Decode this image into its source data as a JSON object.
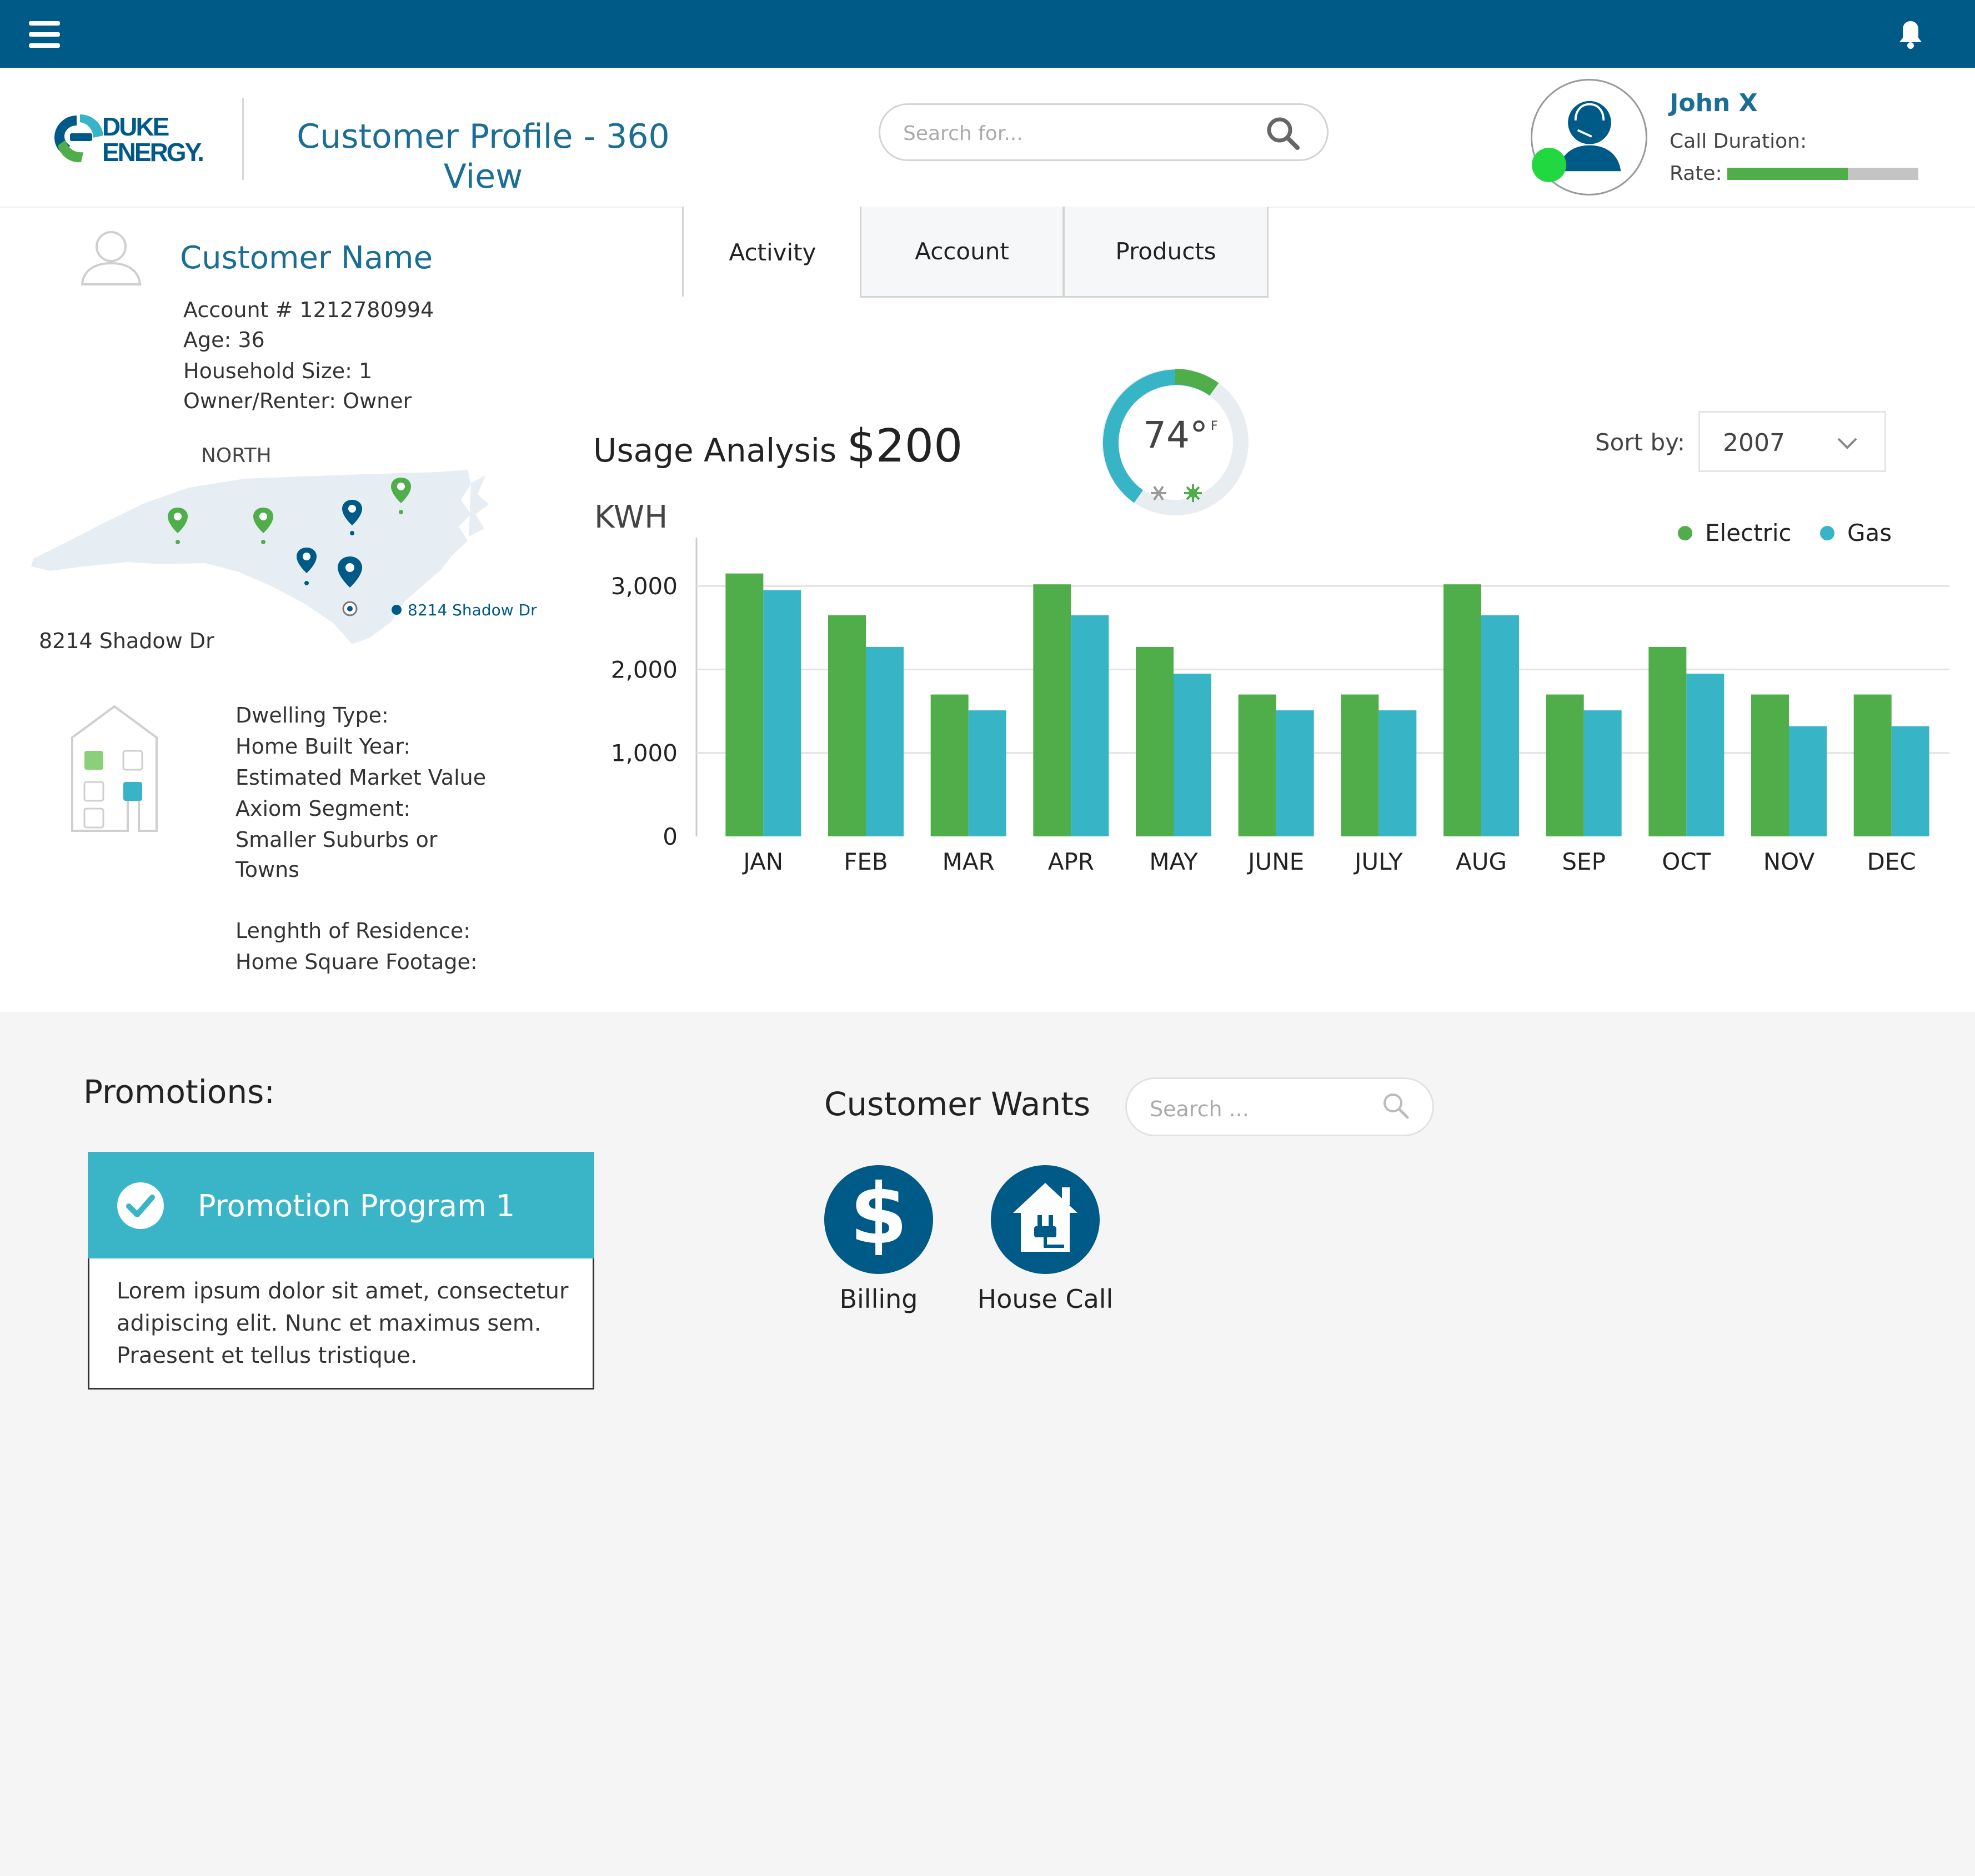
{
  "topbar": {
    "menu_icon": "hamburger-menu-icon",
    "bell_icon": "notification-bell-icon",
    "color": "#005a87"
  },
  "header": {
    "logo_line1": "DUKE",
    "logo_line2": "ENERGY.",
    "title": "Customer Profile - 360 View",
    "search_placeholder": "Search for...",
    "agent": {
      "name": "John X",
      "call_duration_label": "Call Duration:",
      "rate_label": "Rate:",
      "rate_fraction": 0.63,
      "status_color": "#22d840"
    }
  },
  "customer": {
    "name": "Customer Name",
    "account": "Account # 1212780994",
    "age": "Age: 36",
    "household": "Household Size: 1",
    "owner": "Owner/Renter: Owner"
  },
  "tabs": [
    {
      "label": "Activity",
      "active": true
    },
    {
      "label": "Account",
      "active": false
    },
    {
      "label": "Products",
      "active": false
    }
  ],
  "map": {
    "region_label": "NORTH",
    "pin_address": "8214 Shadow Dr",
    "address": "8214 Shadow Dr"
  },
  "dwelling": {
    "type": "Dwelling Type:",
    "built": "Home Built Year:",
    "value": "Estimated Market Value",
    "segment": "Axiom Segment:",
    "segment_value_1": "Smaller Suburbs or",
    "segment_value_2": "Towns",
    "residence": "Lenghth of Residence:",
    "sqft": "Home Square Footage:"
  },
  "usage": {
    "title": "Usage Analysis",
    "amount": "$200",
    "temperature": "74°",
    "temp_unit": "F",
    "sort_label": "Sort by:",
    "sort_value": "2007"
  },
  "chart_data": {
    "type": "bar",
    "ylabel": "KWH",
    "categories": [
      "JAN",
      "FEB",
      "MAR",
      "APR",
      "MAY",
      "JUNE",
      "JULY",
      "AUG",
      "SEP",
      "OCT",
      "NOV",
      "DEC"
    ],
    "series": [
      {
        "name": "Electric",
        "color": "#4fae49",
        "values": [
          3150,
          2650,
          1700,
          3020,
          2270,
          1700,
          1700,
          3020,
          1700,
          2270,
          1700,
          1700
        ]
      },
      {
        "name": "Gas",
        "color": "#38b4c7",
        "values": [
          2950,
          2270,
          1510,
          2650,
          1950,
          1510,
          1510,
          2650,
          1510,
          1950,
          1320,
          1320
        ]
      }
    ],
    "yticks": [
      "0",
      "1,000",
      "2,000",
      "3,000"
    ],
    "ytick_values": [
      0,
      1000,
      2000,
      3000
    ],
    "ylim": [
      0,
      3700
    ],
    "legend": "top-right",
    "grid": true
  },
  "promotions": {
    "title": "Promotions:",
    "program_title": "Promotion Program 1",
    "program_body": "Lorem ipsum dolor sit amet, consectetur adipiscing elit. Nunc et maximus sem. Praesent et tellus tristique.",
    "header_color": "#3ab5c7"
  },
  "wants": {
    "title": "Customer Wants",
    "search_placeholder": "Search ...",
    "items": [
      {
        "label": "Billing",
        "icon": "dollar-icon"
      },
      {
        "label": "House Call",
        "icon": "house-plug-icon"
      }
    ]
  }
}
